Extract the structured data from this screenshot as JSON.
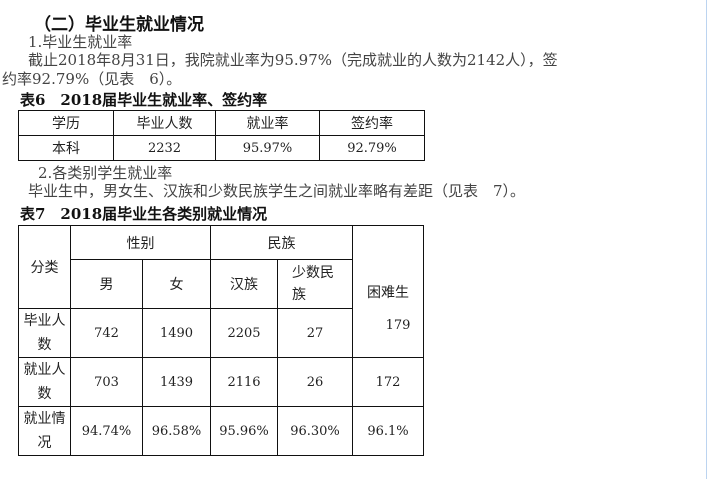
{
  "section_title": "（二）毕业生就业情况",
  "sub1": "1.毕业生就业率",
  "para1_line1": "截止2018年8月31日，我院就业率为95.97%（完成就业的人数为2142人），签",
  "para1_line2": "约率92.79%（见表　6）。",
  "table6": {
    "caption": "表6　2018届毕业生就业率、签约率",
    "headers": [
      "学历",
      "毕业人数",
      "就业率",
      "签约率"
    ],
    "row": [
      "本科",
      "2232",
      "95.97%",
      "92.79%"
    ]
  },
  "sub2": "2.各类别学生就业率",
  "para2": "毕业生中，男女生、汉族和少数民族学生之间就业率略有差距（见表　7）。",
  "table7": {
    "caption": "表7　2018届毕业生各类别就业情况",
    "category": "分类",
    "gender": "性别",
    "ethnicity": "民族",
    "hardship": "困难生",
    "sub": [
      "男",
      "女",
      "汉族",
      "少数民族"
    ],
    "rows": [
      {
        "label": "毕业人数",
        "values": [
          "742",
          "1490",
          "2205",
          "27",
          "179"
        ]
      },
      {
        "label": "就业人数",
        "values": [
          "703",
          "1439",
          "2116",
          "26",
          "172"
        ]
      },
      {
        "label": "就业情况",
        "values": [
          "94.74%",
          "96.58%",
          "95.96%",
          "96.30%",
          "96.1%"
        ]
      }
    ]
  }
}
